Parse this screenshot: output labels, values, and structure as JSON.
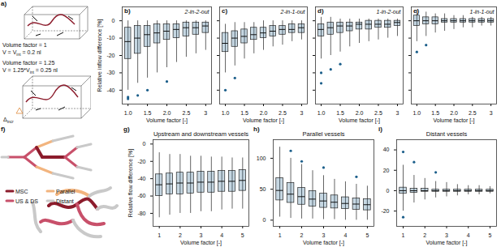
{
  "chart_data": [
    {
      "type": "box",
      "panel": "b)",
      "title": "2-in-2-out",
      "xlabel": "Volume factor [-]",
      "ylabel": "Relative inflow difference [%]",
      "color": "#1b5e8a",
      "x": [
        1,
        1.25,
        1.5,
        1.75,
        2,
        2.25,
        2.5,
        2.75,
        3
      ],
      "values": [
        [
          -40,
          -22,
          -12,
          -4,
          0
        ],
        [
          -36,
          -19,
          -10,
          -3,
          0
        ],
        [
          -33,
          -15,
          -8,
          -3,
          0
        ],
        [
          -30,
          -13,
          -7,
          -2,
          0
        ],
        [
          -27,
          -11,
          -6,
          -2,
          0
        ],
        [
          -24,
          -10,
          -5,
          -2,
          0
        ],
        [
          -21,
          -9,
          -4,
          -1,
          0
        ],
        [
          -19,
          -8,
          -4,
          -1,
          0
        ],
        [
          -17,
          -7,
          -3,
          -1,
          0
        ]
      ],
      "outliers": [
        [
          -45,
          -44
        ],
        [
          -43
        ],
        [
          -40
        ],
        [],
        [
          -35
        ],
        [],
        [],
        [],
        []
      ],
      "xlim": [
        0.85,
        3.15
      ],
      "xticks": [
        {
          "value": 1,
          "label": "1.0"
        },
        1.5,
        {
          "value": 2,
          "label": "2.0"
        },
        2.5,
        3
      ],
      "ylim": [
        -48,
        8
      ],
      "yticks": [
        -40,
        -30,
        -20,
        -10,
        0
      ]
    },
    {
      "type": "box",
      "panel": "c)",
      "title": "2-in-1-out",
      "xlabel": "Volume factor [-]",
      "tick_labels": "x",
      "color": "#1b5e8a",
      "x": [
        1,
        1.25,
        1.5,
        1.75,
        2,
        2.25,
        2.5,
        2.75,
        3
      ],
      "values": [
        [
          -30,
          -18,
          -13,
          -7,
          -2
        ],
        [
          -26,
          -15,
          -10,
          -6,
          -1
        ],
        [
          -22,
          -13,
          -9,
          -5,
          -1
        ],
        [
          -19,
          -11,
          -8,
          -4,
          -1
        ],
        [
          -17,
          -10,
          -7,
          -4,
          0
        ],
        [
          -15,
          -9,
          -6,
          -3,
          0
        ],
        [
          -14,
          -8,
          -5,
          -3,
          0
        ],
        [
          -12,
          -7,
          -5,
          -2,
          0
        ],
        [
          -11,
          -7,
          -4,
          -2,
          0
        ]
      ],
      "outliers": [
        [
          -40
        ],
        [
          -33
        ],
        [],
        [],
        [],
        [],
        [],
        [],
        []
      ],
      "xlim": [
        0.85,
        3.15
      ],
      "xticks": [
        {
          "value": 1,
          "label": "1.0"
        },
        1.5,
        {
          "value": 2,
          "label": "2.0"
        },
        2.5,
        3
      ],
      "ylim": [
        -48,
        8
      ],
      "yticks": [
        -40,
        -30,
        -20,
        -10,
        0
      ]
    },
    {
      "type": "box",
      "panel": "d)",
      "title": "1-in-2-out",
      "xlabel": "Volume factor [-]",
      "tick_labels": "x",
      "color": "#1b5e8a",
      "x": [
        1,
        1.25,
        1.5,
        1.75,
        2,
        2.25,
        2.5,
        2.75,
        3
      ],
      "values": [
        [
          -22,
          -9,
          -5,
          -2,
          2
        ],
        [
          -20,
          -8,
          -4,
          -1,
          2
        ],
        [
          -18,
          -7,
          -3,
          -1,
          1
        ],
        [
          -15,
          -6,
          -3,
          -1,
          1
        ],
        [
          -13,
          -5,
          -2,
          -1,
          1
        ],
        [
          -12,
          -5,
          -2,
          0,
          1
        ],
        [
          -11,
          -4,
          -2,
          0,
          1
        ],
        [
          -10,
          -4,
          -2,
          0,
          1
        ],
        [
          -9,
          -3,
          -1,
          0,
          1
        ]
      ],
      "outliers": [
        [
          -36,
          -30
        ],
        [
          -28
        ],
        [
          -25
        ],
        [],
        [],
        [],
        [],
        [],
        []
      ],
      "xlim": [
        0.85,
        3.15
      ],
      "xticks": [
        {
          "value": 1,
          "label": "1.0"
        },
        1.5,
        {
          "value": 2,
          "label": "2.0"
        },
        2.5,
        3
      ],
      "ylim": [
        -48,
        8
      ],
      "yticks": [
        -40,
        -30,
        -20,
        -10,
        0
      ]
    },
    {
      "type": "box",
      "panel": "e)",
      "title": "1-in-1-out",
      "xlabel": "Volume factor [-]",
      "tick_labels": "x",
      "color": "#1b5e8a",
      "x": [
        1,
        1.25,
        1.5,
        1.75,
        2,
        2.25,
        2.5,
        2.75,
        3
      ],
      "values": [
        [
          -12,
          -3,
          0,
          3,
          6
        ],
        [
          -9,
          -2,
          0,
          2,
          5
        ],
        [
          -7,
          -2,
          0,
          2,
          4
        ],
        [
          -6,
          -1,
          0,
          1,
          4
        ],
        [
          -5,
          -1,
          0,
          1,
          3
        ],
        [
          -4,
          -1,
          0,
          1,
          3
        ],
        [
          -4,
          -1,
          0,
          1,
          2
        ],
        [
          -3,
          -1,
          0,
          1,
          2
        ],
        [
          -3,
          -1,
          0,
          1,
          2
        ]
      ],
      "outliers": [
        [
          -18
        ],
        [
          -14
        ],
        [],
        [],
        [],
        [],
        [],
        [],
        []
      ],
      "xlim": [
        0.85,
        3.15
      ],
      "xticks": [
        {
          "value": 1,
          "label": "1.0"
        },
        1.5,
        {
          "value": 2,
          "label": "2.0"
        },
        2.5,
        3
      ],
      "ylim": [
        -48,
        8
      ],
      "yticks": [
        -40,
        -30,
        -20,
        -10,
        0
      ]
    },
    {
      "type": "box",
      "panel": "g)",
      "title": "Upstream and downstream vessels",
      "xlabel": "Volume factor [-]",
      "ylabel": "Relative flow difference [%]",
      "color": "#1b5e8a",
      "x": [
        1,
        1.5,
        2,
        2.5,
        3,
        3.5,
        4,
        4.5,
        5
      ],
      "values": [
        [
          -85,
          -60,
          -47,
          -35,
          -10
        ],
        [
          -82,
          -58,
          -46,
          -34,
          -12
        ],
        [
          -80,
          -58,
          -45,
          -33,
          -12
        ],
        [
          -80,
          -57,
          -45,
          -33,
          -14
        ],
        [
          -78,
          -56,
          -44,
          -32,
          -14
        ],
        [
          -78,
          -56,
          -44,
          -32,
          -15
        ],
        [
          -76,
          -55,
          -43,
          -31,
          -15
        ],
        [
          -75,
          -55,
          -43,
          -31,
          -16
        ],
        [
          -75,
          -54,
          -42,
          -30,
          -16
        ]
      ],
      "outliers": [
        [],
        [],
        [],
        [],
        [],
        [],
        [],
        [],
        []
      ],
      "xlim": [
        0.7,
        5.3
      ],
      "xticks": [
        1,
        2,
        3,
        4,
        5
      ],
      "ylim": [
        -95,
        5
      ],
      "yticks": [
        -80,
        -60,
        -40,
        -20,
        0
      ]
    },
    {
      "type": "box",
      "panel": "h)",
      "title": "Parallel vessels",
      "xlabel": "Volume factor [-]",
      "color": "#1b5e8a",
      "x": [
        1,
        1.5,
        2,
        2.5,
        3,
        3.5,
        4,
        4.5,
        5
      ],
      "values": [
        [
          5,
          32,
          48,
          68,
          118
        ],
        [
          3,
          28,
          42,
          60,
          100
        ],
        [
          2,
          25,
          38,
          52,
          90
        ],
        [
          2,
          22,
          34,
          47,
          80
        ],
        [
          1,
          20,
          31,
          43,
          72
        ],
        [
          1,
          19,
          29,
          40,
          66
        ],
        [
          0,
          18,
          27,
          37,
          62
        ],
        [
          0,
          17,
          26,
          35,
          58
        ],
        [
          0,
          16,
          25,
          34,
          55
        ]
      ],
      "outliers": [
        [],
        [
          112
        ],
        [
          95
        ],
        [],
        [
          85
        ],
        [],
        [],
        [
          70
        ],
        []
      ],
      "xlim": [
        0.7,
        5.3
      ],
      "xticks": [
        1,
        2,
        3,
        4,
        5
      ],
      "ylim": [
        -10,
        130
      ],
      "yticks": [
        0,
        50,
        100
      ]
    },
    {
      "type": "box",
      "panel": "i)",
      "title": "Distant vessels",
      "xlabel": "Volume factor [-]",
      "color": "#1b5e8a",
      "x": [
        1,
        1.5,
        2,
        2.5,
        3,
        3.5,
        4,
        4.5,
        5
      ],
      "values": [
        [
          -20,
          -3,
          0,
          3,
          25
        ],
        [
          -12,
          -2,
          0,
          2,
          15
        ],
        [
          -9,
          -1,
          0,
          2,
          12
        ],
        [
          -7,
          -1,
          0,
          1,
          9
        ],
        [
          -6,
          -1,
          0,
          1,
          8
        ],
        [
          -5,
          -1,
          0,
          1,
          6
        ],
        [
          -4,
          -1,
          0,
          1,
          5
        ],
        [
          -4,
          -1,
          0,
          1,
          5
        ],
        [
          -3,
          -1,
          0,
          1,
          4
        ]
      ],
      "outliers": [
        [
          38,
          -26
        ],
        [
          28
        ],
        [],
        [
          18
        ],
        [],
        [],
        [],
        [],
        []
      ],
      "xlim": [
        0.7,
        5.3
      ],
      "xticks": [
        1,
        2,
        3,
        4,
        5
      ],
      "ylim": [
        -35,
        50
      ],
      "yticks": [
        -20,
        0,
        20,
        40
      ]
    }
  ],
  "diagram_a": {
    "panel": "a)",
    "cube1": {
      "factor": "Volume factor = 1",
      "volume": {
        "before": "V = V",
        "sub": "int",
        "after": " = 0.2 nl"
      }
    },
    "cube2": {
      "factor": "Volume factor = 1.25",
      "volume": {
        "before": "V = 1.25*V",
        "sub": "int",
        "after": " = 0.25 nl"
      }
    },
    "increment": {
      "before": "Δ",
      "sub": "incr"
    }
  },
  "diagram_f": {
    "panel": "f)",
    "legend": [
      {
        "name": "MSC",
        "color": "#8c1c2c"
      },
      {
        "name": "Parallel",
        "color": "#f2b47e"
      },
      {
        "name": "US & DS",
        "color": "#c8506a"
      },
      {
        "name": "Distant",
        "color": "#c9c9c9"
      }
    ]
  }
}
